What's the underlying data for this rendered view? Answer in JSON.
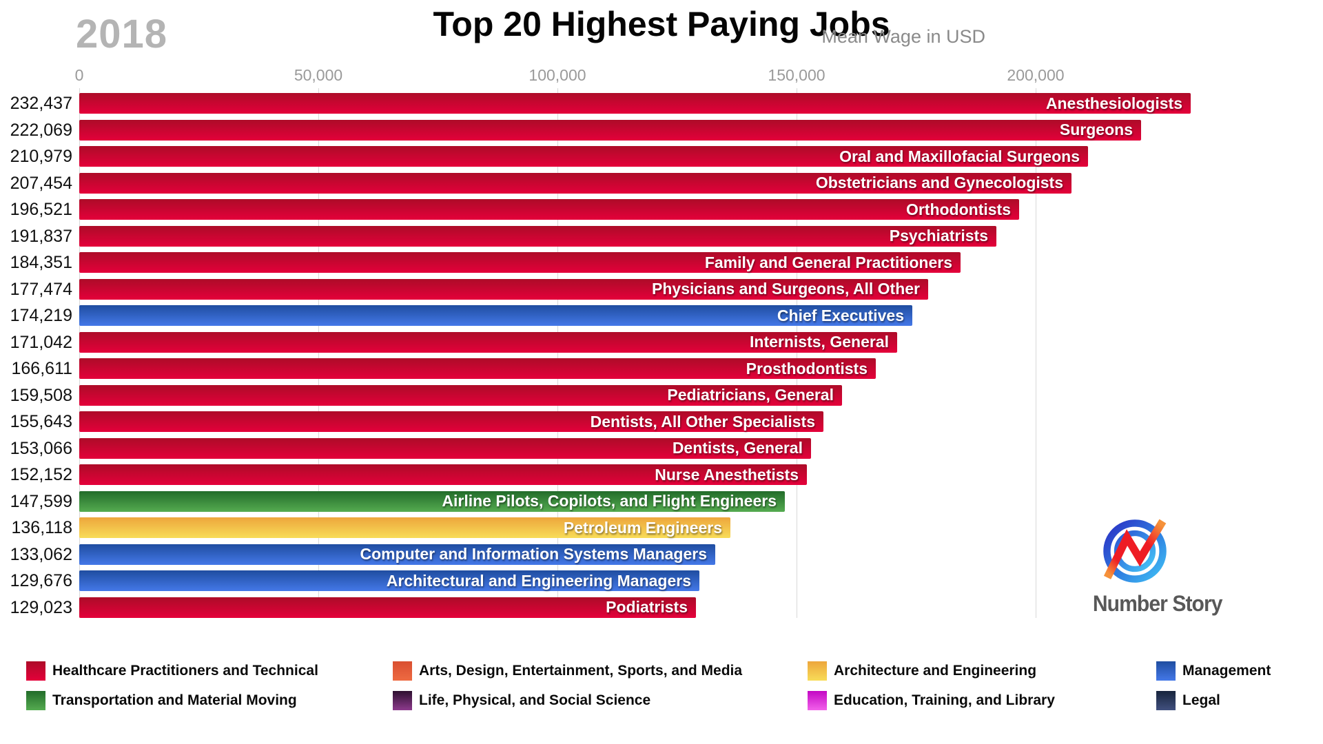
{
  "header": {
    "year": "2018",
    "title": "Top 20 Highest Paying Jobs",
    "subtitle": "Mean Wage in USD"
  },
  "chart_data": {
    "type": "bar",
    "orientation": "horizontal",
    "title": "Top 20 Highest Paying Jobs",
    "year": "2018",
    "unit": "Mean Wage in USD",
    "xlim": [
      0,
      200000
    ],
    "x_ticks": [
      0,
      50000,
      100000,
      150000,
      200000
    ],
    "x_tick_labels": [
      "0",
      "50,000",
      "100,000",
      "150,000",
      "200,000"
    ],
    "grid": true,
    "palette": {
      "healthcare": {
        "top": "#ad0c28",
        "bottom": "#e4003a"
      },
      "arts": {
        "top": "#d94f30",
        "bottom": "#ee6a42"
      },
      "architecture": {
        "top": "#eda63c",
        "bottom": "#f8dc58"
      },
      "management": {
        "top": "#1f4da0",
        "bottom": "#4478e8"
      },
      "transportation": {
        "top": "#226c2a",
        "bottom": "#55ab50"
      },
      "life": {
        "top": "#2e1030",
        "bottom": "#8d3a8d"
      },
      "education": {
        "top": "#c308c4",
        "bottom": "#f261ea"
      },
      "legal": {
        "top": "#17243c",
        "bottom": "#41507f"
      }
    },
    "bars": [
      {
        "label": "Anesthesiologists",
        "value": 232437,
        "value_label": "232,437",
        "category": "healthcare"
      },
      {
        "label": "Surgeons",
        "value": 222069,
        "value_label": "222,069",
        "category": "healthcare"
      },
      {
        "label": "Oral and Maxillofacial Surgeons",
        "value": 210979,
        "value_label": "210,979",
        "category": "healthcare"
      },
      {
        "label": "Obstetricians and Gynecologists",
        "value": 207454,
        "value_label": "207,454",
        "category": "healthcare"
      },
      {
        "label": "Orthodontists",
        "value": 196521,
        "value_label": "196,521",
        "category": "healthcare"
      },
      {
        "label": "Psychiatrists",
        "value": 191837,
        "value_label": "191,837",
        "category": "healthcare"
      },
      {
        "label": "Family and General Practitioners",
        "value": 184351,
        "value_label": "184,351",
        "category": "healthcare"
      },
      {
        "label": "Physicians and Surgeons, All Other",
        "value": 177474,
        "value_label": "177,474",
        "category": "healthcare"
      },
      {
        "label": "Chief Executives",
        "value": 174219,
        "value_label": "174,219",
        "category": "management"
      },
      {
        "label": "Internists, General",
        "value": 171042,
        "value_label": "171,042",
        "category": "healthcare"
      },
      {
        "label": "Prosthodontists",
        "value": 166611,
        "value_label": "166,611",
        "category": "healthcare"
      },
      {
        "label": "Pediatricians, General",
        "value": 159508,
        "value_label": "159,508",
        "category": "healthcare"
      },
      {
        "label": "Dentists, All Other Specialists",
        "value": 155643,
        "value_label": "155,643",
        "category": "healthcare"
      },
      {
        "label": "Dentists, General",
        "value": 153066,
        "value_label": "153,066",
        "category": "healthcare"
      },
      {
        "label": "Nurse Anesthetists",
        "value": 152152,
        "value_label": "152,152",
        "category": "healthcare"
      },
      {
        "label": "Airline Pilots, Copilots, and Flight Engineers",
        "value": 147599,
        "value_label": "147,599",
        "category": "transportation"
      },
      {
        "label": "Petroleum Engineers",
        "value": 136118,
        "value_label": "136,118",
        "category": "architecture"
      },
      {
        "label": "Computer and Information Systems Managers",
        "value": 133062,
        "value_label": "133,062",
        "category": "management"
      },
      {
        "label": "Architectural and Engineering Managers",
        "value": 129676,
        "value_label": "129,676",
        "category": "management"
      },
      {
        "label": "Podiatrists",
        "value": 129023,
        "value_label": "129,023",
        "category": "healthcare"
      }
    ],
    "legend_position": "bottom"
  },
  "legend": {
    "items": [
      {
        "key": "healthcare",
        "label": "Healthcare Practitioners and Technical"
      },
      {
        "key": "arts",
        "label": "Arts, Design, Entertainment, Sports, and Media"
      },
      {
        "key": "architecture",
        "label": "Architecture and Engineering"
      },
      {
        "key": "management",
        "label": "Management"
      },
      {
        "key": "transportation",
        "label": "Transportation and Material Moving"
      },
      {
        "key": "life",
        "label": "Life, Physical, and Social Science"
      },
      {
        "key": "education",
        "label": "Education, Training, and Library"
      },
      {
        "key": "legal",
        "label": "Legal"
      }
    ]
  },
  "logo": {
    "text": "Number Story"
  }
}
